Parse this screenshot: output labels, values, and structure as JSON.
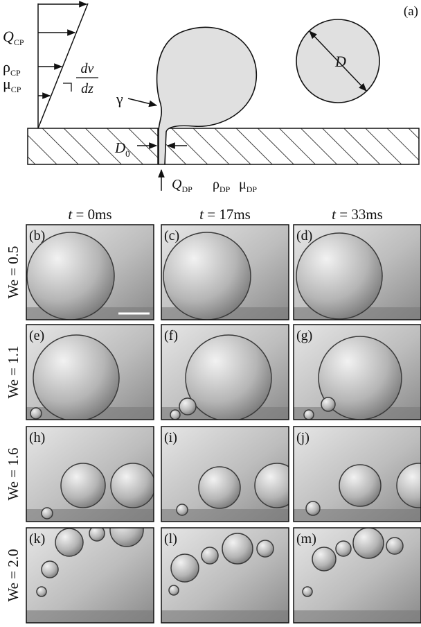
{
  "figure_label": "(a)",
  "diagram": {
    "continuous_phase": [
      {
        "symbol": "Q",
        "subscript": "CP"
      },
      {
        "symbol": "ρ",
        "subscript": "CP"
      },
      {
        "symbol": "μ",
        "subscript": "CP"
      }
    ],
    "shear_rate": {
      "numerator": "dv",
      "denominator": "dz"
    },
    "surface_tension": "γ",
    "diameter": "D",
    "orifice": {
      "symbol": "D",
      "subscript": "0"
    },
    "dispersed_phase": [
      {
        "symbol": "Q",
        "subscript": "DP"
      },
      {
        "symbol": "ρ",
        "subscript": "DP"
      },
      {
        "symbol": "μ",
        "subscript": "DP"
      }
    ]
  },
  "columns": [
    {
      "symbol": "t",
      "text": " = 0ms"
    },
    {
      "symbol": "t",
      "text": " = 17ms"
    },
    {
      "symbol": "t",
      "text": " = 33ms"
    }
  ],
  "rows": [
    {
      "label": "We = 0.5",
      "panels": [
        "(b)",
        "(c)",
        "(d)"
      ]
    },
    {
      "label": "We = 1.1",
      "panels": [
        "(e)",
        "(f)",
        "(g)"
      ]
    },
    {
      "label": "We = 1.6",
      "panels": [
        "(h)",
        "(i)",
        "(j)"
      ]
    },
    {
      "label": "We = 2.0",
      "panels": [
        "(k)",
        "(l)",
        "(m)"
      ]
    }
  ]
}
